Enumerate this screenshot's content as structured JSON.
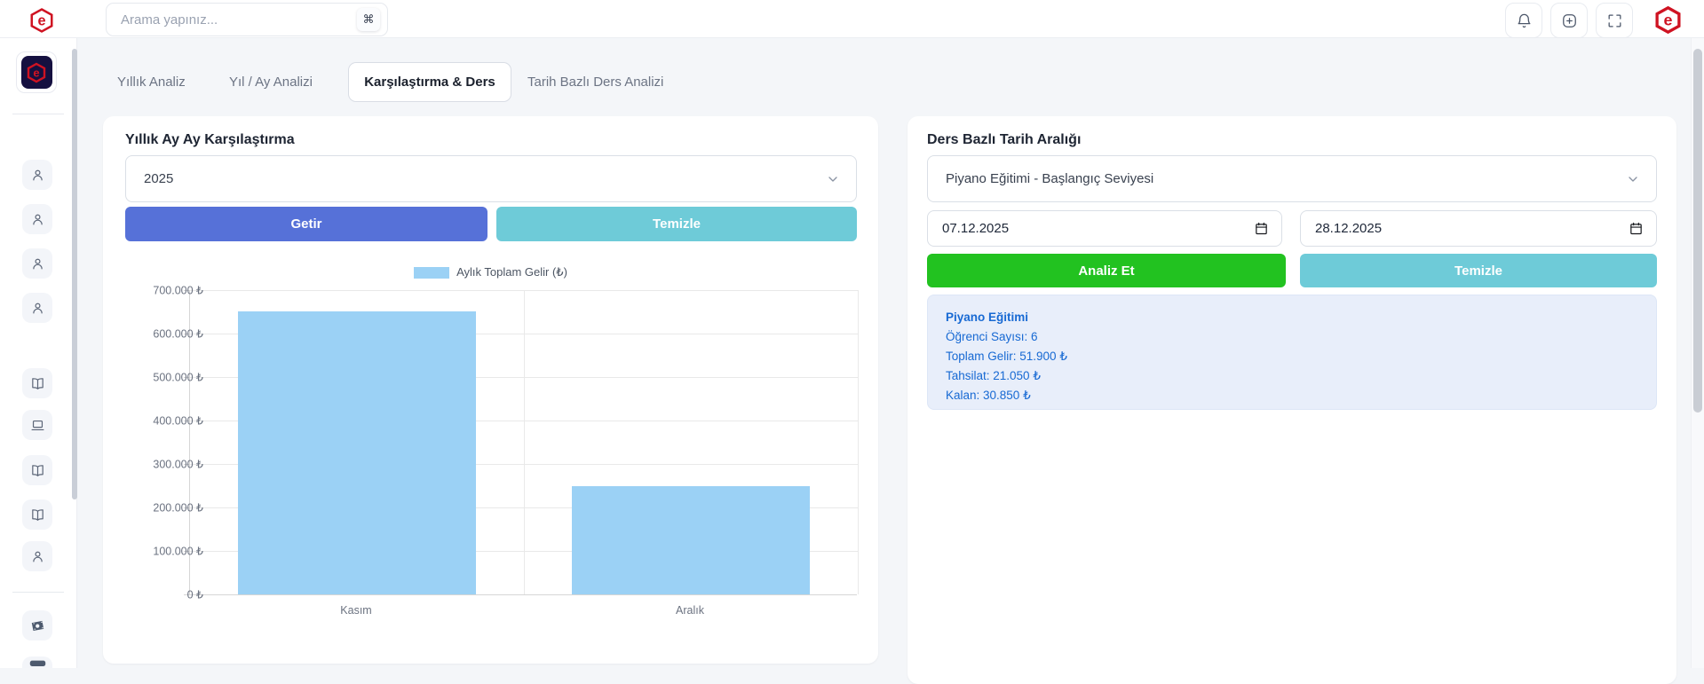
{
  "topbar": {
    "search": {
      "placeholder": "Arama yapınız...",
      "shortcut": "⌘"
    },
    "icons": [
      "bell",
      "add-circle",
      "fullscreen"
    ],
    "logo": "e-brand-logo"
  },
  "sidebar": {
    "logo": "e-brand-logo",
    "items": [
      {
        "icon": "user"
      },
      {
        "icon": "user"
      },
      {
        "icon": "user"
      },
      {
        "icon": "user"
      },
      {
        "icon": "book"
      },
      {
        "icon": "laptop"
      },
      {
        "icon": "book"
      },
      {
        "icon": "book"
      },
      {
        "icon": "user"
      },
      {
        "icon": "money"
      },
      {
        "icon": "card-partial"
      }
    ]
  },
  "tabs": [
    {
      "label": "Yıllık Analiz",
      "active": false
    },
    {
      "label": "Yıl / Ay Analizi",
      "active": false
    },
    {
      "label": "Karşılaştırma & Ders",
      "active": true
    },
    {
      "label": "Tarih Bazlı Ders Analizi",
      "active": false
    }
  ],
  "left_panel": {
    "title": "Yıllık Ay Ay Karşılaştırma",
    "year_select": {
      "value": "2025"
    },
    "fetch_button": "Getir",
    "clear_button": "Temizle"
  },
  "right_panel": {
    "title": "Ders Bazlı Tarih Aralığı",
    "course_select": {
      "value": "Piyano Eğitimi - Başlangıç Seviyesi"
    },
    "date_from": "07.12.2025",
    "date_to": "28.12.2025",
    "analyze_button": "Analiz Et",
    "clear_button": "Temizle",
    "result": {
      "title": "Piyano Eğitimi",
      "lines": [
        "Öğrenci Sayısı: 6",
        "Toplam Gelir: 51.900 ₺",
        "Tahsilat: 21.050 ₺",
        "Kalan: 30.850 ₺"
      ]
    }
  },
  "chart_data": {
    "type": "bar",
    "categories": [
      "Kasım",
      "Aralık"
    ],
    "series": [
      {
        "name": "Aylık Toplam Gelir (₺)",
        "values": [
          651000,
          249000
        ]
      }
    ],
    "title": "",
    "xlabel": "",
    "ylabel": "",
    "ylim": [
      0,
      700000
    ],
    "ytick_step": 100000,
    "ytick_suffix": " ₺",
    "grid": true,
    "legend_position": "top",
    "bar_color": "#9bd1f5"
  },
  "colors": {
    "accent_indigo": "#5671d8",
    "accent_teal": "#6ecbd8",
    "accent_green": "#22c220",
    "result_bg": "#e8eefa",
    "result_text": "#1769d3",
    "bar_fill": "#9bd1f5",
    "brand_red": "#cf1322",
    "brand_navy": "#151040"
  }
}
